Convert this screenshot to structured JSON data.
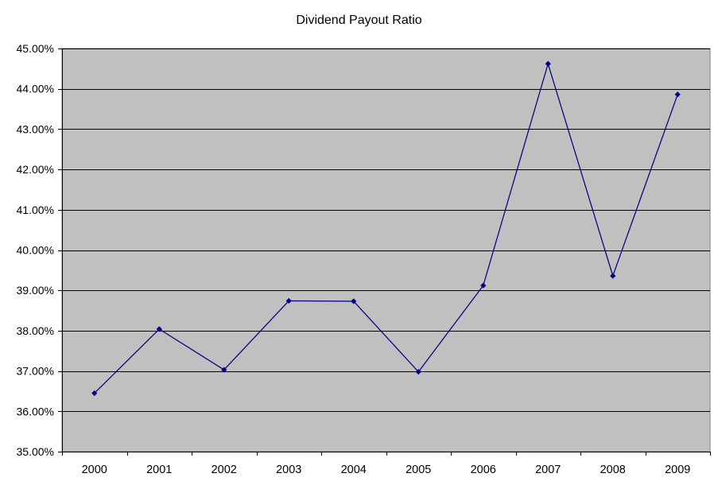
{
  "chart_data": {
    "type": "line",
    "title": "Dividend Payout Ratio",
    "xlabel": "",
    "ylabel": "",
    "categories": [
      "2000",
      "2001",
      "2002",
      "2003",
      "2004",
      "2005",
      "2006",
      "2007",
      "2008",
      "2009"
    ],
    "series": [
      {
        "name": "Dividend Payout Ratio",
        "values": [
          36.45,
          38.04,
          37.03,
          38.74,
          38.73,
          36.98,
          39.12,
          44.62,
          39.36,
          43.86
        ]
      }
    ],
    "ylim": [
      35,
      45
    ],
    "ytick_step": 1,
    "y_ticks": [
      {
        "value": 45,
        "label": "45.00%"
      },
      {
        "value": 44,
        "label": "44.00%"
      },
      {
        "value": 43,
        "label": "43.00%"
      },
      {
        "value": 42,
        "label": "42.00%"
      },
      {
        "value": 41,
        "label": "41.00%"
      },
      {
        "value": 40,
        "label": "40.00%"
      },
      {
        "value": 39,
        "label": "39.00%"
      },
      {
        "value": 38,
        "label": "38.00%"
      },
      {
        "value": 37,
        "label": "37.00%"
      },
      {
        "value": 36,
        "label": "36.00%"
      },
      {
        "value": 35,
        "label": "35.00%"
      }
    ],
    "grid": true,
    "legend": "none",
    "marker_shape": "diamond",
    "colors": {
      "line": "#000080",
      "marker": "#000080",
      "plot_background": "#C0C0C0",
      "plot_border": "#808080",
      "gridline": "#000000",
      "axis": "#000000",
      "text": "#000000",
      "page_background": "#FFFFFF"
    }
  }
}
